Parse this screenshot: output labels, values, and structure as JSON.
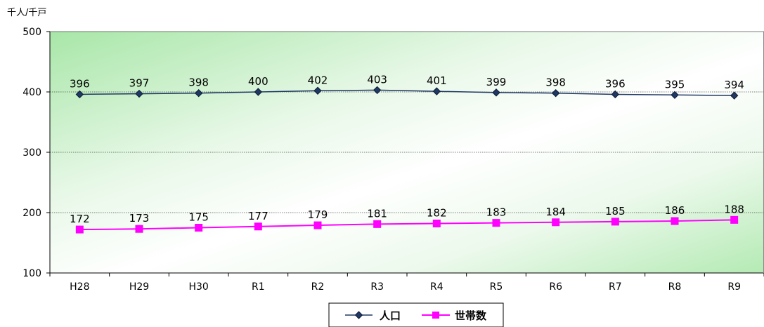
{
  "chart_data": {
    "type": "line",
    "unit_label": "千人/千戸",
    "categories": [
      "H28",
      "H29",
      "H30",
      "R1",
      "R2",
      "R3",
      "R4",
      "R5",
      "R6",
      "R7",
      "R8",
      "R9"
    ],
    "ylim": [
      100,
      500
    ],
    "yticks": [
      100,
      200,
      300,
      400,
      500
    ],
    "grid": true,
    "legend_position": "bottom",
    "series": [
      {
        "name": "人口",
        "color": "#1f3864",
        "marker": "diamond",
        "values": [
          396,
          397,
          398,
          400,
          402,
          403,
          401,
          399,
          398,
          396,
          395,
          394
        ]
      },
      {
        "name": "世帯数",
        "color": "#ff00ff",
        "marker": "square",
        "values": [
          172,
          173,
          175,
          177,
          179,
          181,
          182,
          183,
          184,
          185,
          186,
          188
        ]
      }
    ]
  }
}
